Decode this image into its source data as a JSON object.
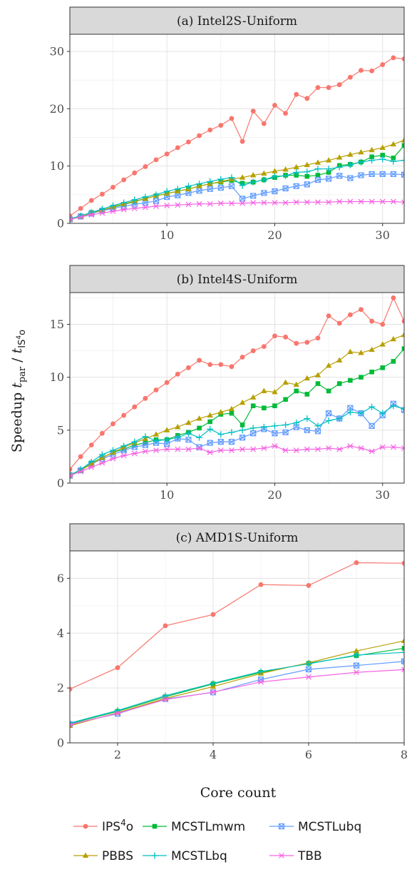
{
  "ylabel": {
    "prefix": "Speedup ",
    "t": "t",
    "par": "par",
    "slash": " / ",
    "t2": "t",
    "ips": "IS",
    "four": "4",
    "o": "o"
  },
  "xlabel": "Core count",
  "legend": [
    {
      "label": "IPS",
      "sup": "4",
      "suffix": "o",
      "color": "#F8766D",
      "marker": "circle"
    },
    {
      "label": "MCSTLmwm",
      "sup": "",
      "suffix": "",
      "color": "#00BA38",
      "marker": "square"
    },
    {
      "label": "MCSTLubq",
      "sup": "",
      "suffix": "",
      "color": "#619CFF",
      "marker": "boxx"
    },
    {
      "label": "PBBS",
      "sup": "",
      "suffix": "",
      "color": "#B79F00",
      "marker": "triangle"
    },
    {
      "label": "MCSTLbq",
      "sup": "",
      "suffix": "",
      "color": "#00BFC4",
      "marker": "plus"
    },
    {
      "label": "TBB",
      "sup": "",
      "suffix": "",
      "color": "#F564E3",
      "marker": "star"
    }
  ],
  "chart_data": [
    {
      "type": "line",
      "title": "(a) Intel2S-Uniform",
      "xlim": [
        1,
        32
      ],
      "ylim": [
        0,
        33
      ],
      "xticks": [
        10,
        20,
        30
      ],
      "yticks": [
        0,
        10,
        20,
        30
      ],
      "xminor": [
        5,
        15,
        25
      ],
      "yminor": [
        5,
        15,
        25
      ],
      "grid": true,
      "x": [
        1,
        2,
        3,
        4,
        5,
        6,
        7,
        8,
        9,
        10,
        11,
        12,
        13,
        14,
        15,
        16,
        17,
        18,
        19,
        20,
        21,
        22,
        23,
        24,
        25,
        26,
        27,
        28,
        29,
        30,
        31,
        32
      ],
      "series": [
        {
          "name": "IPS4o",
          "values": [
            1.3,
            2.6,
            4.0,
            5.1,
            6.3,
            7.6,
            8.8,
            9.9,
            11.1,
            12.1,
            13.2,
            14.2,
            15.3,
            16.3,
            17.1,
            18.3,
            14.3,
            19.6,
            17.4,
            20.6,
            19.2,
            22.5,
            21.8,
            23.7,
            23.7,
            24.2,
            25.5,
            26.7,
            26.6,
            27.7,
            28.9,
            28.7
          ]
        },
        {
          "name": "MCSTLmwm",
          "values": [
            0.8,
            1.3,
            1.9,
            2.3,
            2.8,
            3.3,
            3.8,
            4.3,
            4.8,
            5.2,
            5.6,
            6.0,
            6.5,
            6.9,
            7.2,
            7.5,
            7.0,
            7.2,
            7.6,
            8.0,
            8.4,
            8.4,
            8.2,
            8.4,
            8.9,
            10.1,
            10.3,
            10.7,
            11.6,
            11.9,
            11.4,
            13.6
          ]
        },
        {
          "name": "MCSTLubq",
          "values": [
            0.7,
            1.2,
            1.7,
            2.2,
            2.6,
            3.0,
            3.3,
            3.6,
            3.9,
            4.6,
            4.9,
            5.3,
            5.7,
            6.0,
            6.2,
            6.5,
            4.3,
            4.8,
            5.3,
            5.6,
            6.1,
            6.5,
            6.8,
            7.6,
            7.8,
            8.3,
            7.9,
            8.4,
            8.6,
            8.6,
            8.6,
            8.5
          ]
        },
        {
          "name": "PBBS",
          "values": [
            0.7,
            1.2,
            1.8,
            2.3,
            2.9,
            3.4,
            3.9,
            4.3,
            4.8,
            5.2,
            5.6,
            6.0,
            6.5,
            6.9,
            7.3,
            7.7,
            8.0,
            8.4,
            8.7,
            9.1,
            9.4,
            9.8,
            10.2,
            10.6,
            11.0,
            11.5,
            12.0,
            12.4,
            12.8,
            13.2,
            13.8,
            14.5
          ]
        },
        {
          "name": "MCSTLbq",
          "values": [
            0.7,
            1.3,
            1.9,
            2.5,
            3.1,
            3.6,
            4.1,
            4.6,
            5.0,
            5.6,
            6.0,
            6.5,
            6.9,
            7.3,
            7.7,
            8.0,
            6.6,
            7.2,
            7.6,
            8.2,
            8.3,
            8.9,
            9.0,
            9.5,
            9.5,
            9.8,
            10.2,
            10.7,
            11.0,
            11.2,
            10.8,
            11.0
          ]
        },
        {
          "name": "TBB",
          "values": [
            0.7,
            1.1,
            1.5,
            1.8,
            2.1,
            2.4,
            2.6,
            2.8,
            3.0,
            3.1,
            3.2,
            3.3,
            3.4,
            3.4,
            3.5,
            3.5,
            3.5,
            3.6,
            3.6,
            3.6,
            3.6,
            3.7,
            3.7,
            3.7,
            3.7,
            3.8,
            3.8,
            3.8,
            3.8,
            3.8,
            3.8,
            3.7
          ]
        }
      ]
    },
    {
      "type": "line",
      "title": "(b) Intel4S-Uniform",
      "xlim": [
        1,
        32
      ],
      "ylim": [
        0,
        18
      ],
      "xticks": [
        10,
        20,
        30
      ],
      "yticks": [
        0,
        5,
        10,
        15
      ],
      "xminor": [
        5,
        15,
        25
      ],
      "yminor": [
        2.5,
        7.5,
        12.5,
        17.5
      ],
      "grid": true,
      "x": [
        1,
        2,
        3,
        4,
        5,
        6,
        7,
        8,
        9,
        10,
        11,
        12,
        13,
        14,
        15,
        16,
        17,
        18,
        19,
        20,
        21,
        22,
        23,
        24,
        25,
        26,
        27,
        28,
        29,
        30,
        31,
        32
      ],
      "series": [
        {
          "name": "IPS4o",
          "values": [
            1.3,
            2.5,
            3.6,
            4.7,
            5.6,
            6.4,
            7.2,
            8.0,
            8.8,
            9.5,
            10.3,
            10.9,
            11.6,
            11.2,
            11.2,
            11.0,
            11.9,
            12.5,
            12.9,
            13.9,
            13.8,
            13.2,
            13.3,
            13.7,
            15.8,
            15.1,
            15.9,
            16.4,
            15.3,
            15.0,
            17.5,
            15.3
          ]
        },
        {
          "name": "MCSTLmwm",
          "values": [
            0.8,
            1.2,
            1.9,
            2.4,
            2.9,
            3.2,
            3.6,
            3.8,
            4.1,
            4.1,
            4.5,
            4.8,
            5.2,
            5.8,
            6.5,
            6.6,
            5.5,
            7.3,
            7.1,
            7.3,
            7.9,
            8.7,
            8.4,
            9.4,
            8.7,
            9.4,
            9.7,
            10.0,
            10.5,
            10.9,
            11.5,
            12.7
          ]
        },
        {
          "name": "MCSTLubq",
          "values": [
            0.7,
            1.2,
            1.8,
            2.3,
            2.7,
            3.1,
            3.4,
            3.6,
            3.8,
            3.7,
            4.2,
            4.1,
            3.4,
            3.8,
            3.9,
            3.9,
            4.3,
            4.7,
            5.1,
            4.7,
            4.8,
            5.3,
            5.0,
            4.9,
            6.6,
            6.1,
            7.1,
            6.6,
            5.4,
            6.4,
            7.5,
            6.9
          ]
        },
        {
          "name": "PBBS",
          "values": [
            0.7,
            1.2,
            1.8,
            2.4,
            2.9,
            3.4,
            3.8,
            4.2,
            4.6,
            5.0,
            5.3,
            5.7,
            6.1,
            6.4,
            6.7,
            7.0,
            7.6,
            8.1,
            8.7,
            8.6,
            9.5,
            9.3,
            9.9,
            10.2,
            11.1,
            11.6,
            12.4,
            12.3,
            12.6,
            13.1,
            13.6,
            14.0
          ]
        },
        {
          "name": "MCSTLbq",
          "values": [
            0.7,
            1.3,
            2.0,
            2.7,
            3.1,
            3.5,
            3.9,
            4.4,
            4.0,
            4.1,
            4.3,
            4.7,
            4.3,
            5.1,
            4.6,
            4.8,
            5.0,
            5.2,
            5.3,
            5.4,
            5.5,
            5.7,
            6.1,
            5.4,
            5.9,
            6.1,
            6.7,
            6.6,
            7.2,
            6.6,
            7.3,
            7.0
          ]
        },
        {
          "name": "TBB",
          "values": [
            0.7,
            1.1,
            1.5,
            1.9,
            2.3,
            2.6,
            2.8,
            3.0,
            3.1,
            3.2,
            3.2,
            3.2,
            3.3,
            2.9,
            3.1,
            3.1,
            3.2,
            3.2,
            3.3,
            3.5,
            3.1,
            3.1,
            3.2,
            3.2,
            3.3,
            3.2,
            3.5,
            3.3,
            3.0,
            3.4,
            3.4,
            3.3
          ]
        }
      ]
    },
    {
      "type": "line",
      "title": "(c) AMD1S-Uniform",
      "xlim": [
        1,
        8
      ],
      "ylim": [
        0,
        7
      ],
      "xticks": [
        2,
        4,
        6,
        8
      ],
      "yticks": [
        0,
        2,
        4,
        6
      ],
      "xminor": [
        1,
        3,
        5,
        7
      ],
      "yminor": [
        1,
        3,
        5,
        7
      ],
      "grid": true,
      "x": [
        1,
        2,
        3,
        4,
        5,
        6,
        7,
        8
      ],
      "series": [
        {
          "name": "IPS4o",
          "values": [
            1.96,
            2.74,
            4.27,
            4.68,
            5.77,
            5.74,
            6.57,
            6.55
          ]
        },
        {
          "name": "MCSTLmwm",
          "values": [
            0.7,
            1.15,
            1.68,
            2.15,
            2.57,
            2.9,
            3.18,
            3.45
          ]
        },
        {
          "name": "MCSTLubq",
          "values": [
            0.68,
            1.06,
            1.6,
            1.84,
            2.31,
            2.68,
            2.82,
            2.97
          ]
        },
        {
          "name": "PBBS",
          "values": [
            0.62,
            1.1,
            1.62,
            2.05,
            2.53,
            2.92,
            3.35,
            3.72
          ]
        },
        {
          "name": "MCSTLbq",
          "values": [
            0.72,
            1.18,
            1.72,
            2.17,
            2.6,
            2.88,
            3.2,
            3.3
          ]
        },
        {
          "name": "TBB",
          "values": [
            0.66,
            1.08,
            1.58,
            1.85,
            2.22,
            2.4,
            2.57,
            2.67
          ]
        }
      ]
    }
  ]
}
